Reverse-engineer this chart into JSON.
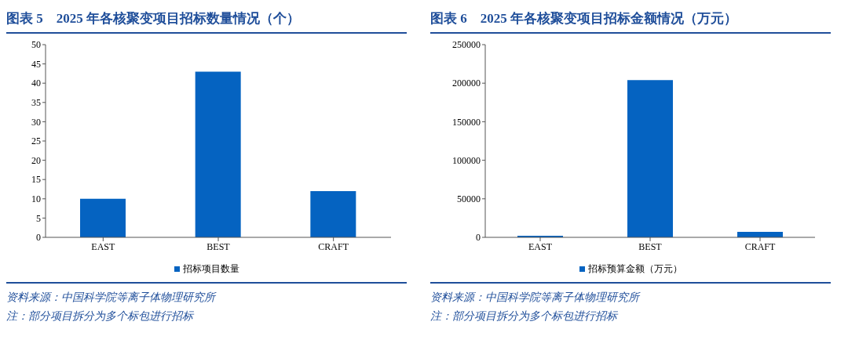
{
  "chart_data": [
    {
      "type": "bar",
      "title": "图表 5　2025 年各核聚变项目招标数量情况（个）",
      "categories": [
        "EAST",
        "BEST",
        "CRAFT"
      ],
      "series": [
        {
          "name": "招标项目数量",
          "color": "#0563c1",
          "values": [
            10,
            43,
            12
          ]
        }
      ],
      "ylim": [
        0,
        50
      ],
      "yticks": [
        0,
        5,
        10,
        15,
        20,
        25,
        30,
        35,
        40,
        45,
        50
      ],
      "grid": false,
      "legend": "bottom",
      "annotations": [
        "资料来源：中国科学院等离子体物理研究所",
        "注：部分项目拆分为多个标包进行招标"
      ]
    },
    {
      "type": "bar",
      "title": "图表 6　2025 年各核聚变项目招标金额情况（万元）",
      "categories": [
        "EAST",
        "BEST",
        "CRAFT"
      ],
      "series": [
        {
          "name": "招标预算金额（万元）",
          "color": "#0563c1",
          "values": [
            2000,
            204000,
            7000
          ]
        }
      ],
      "ylim": [
        0,
        250000
      ],
      "yticks": [
        0,
        50000,
        100000,
        150000,
        200000,
        250000
      ],
      "grid": false,
      "legend": "bottom",
      "annotations": [
        "资料来源：中国科学院等离子体物理研究所",
        "注：部分项目拆分为多个标包进行招标"
      ]
    }
  ]
}
